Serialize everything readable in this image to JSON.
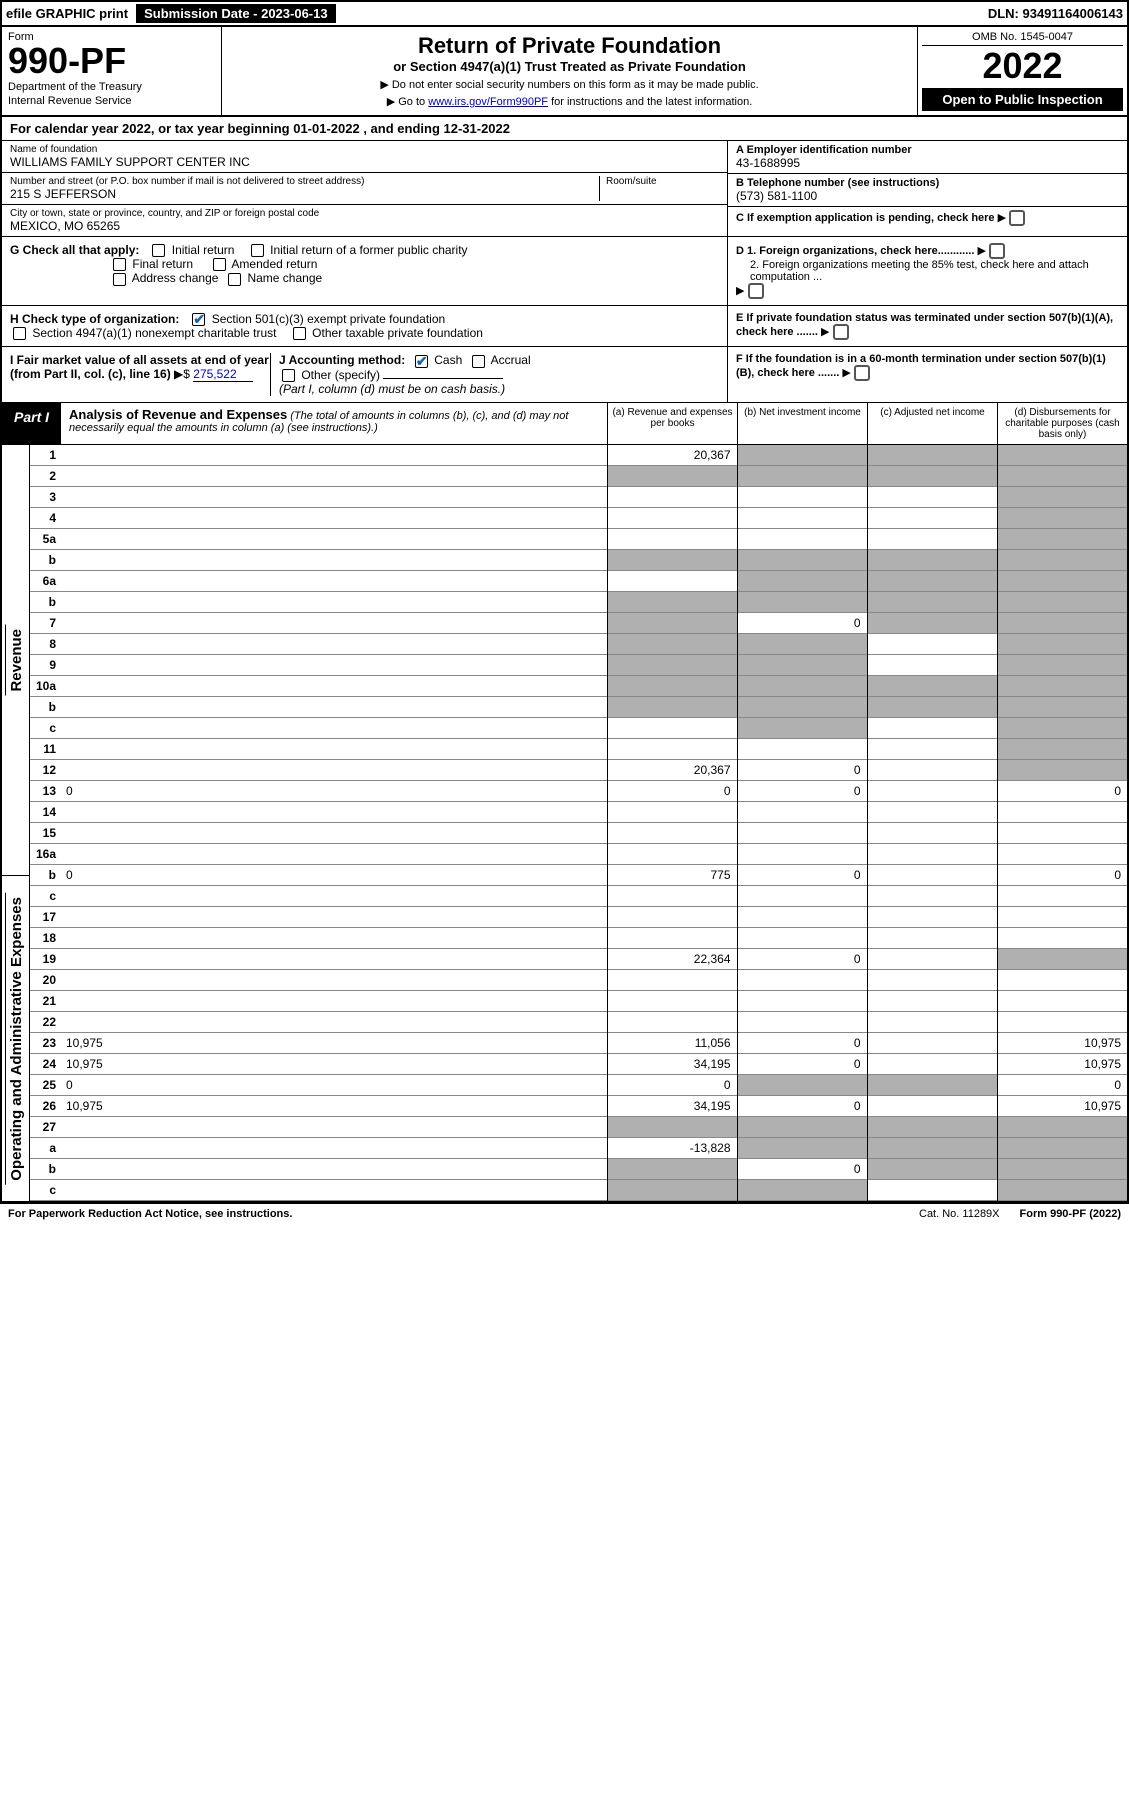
{
  "top": {
    "efile": "efile GRAPHIC print",
    "submission_label": "Submission Date - 2023-06-13",
    "dln": "DLN: 93491164006143"
  },
  "header": {
    "form_label": "Form",
    "form_number": "990-PF",
    "dept1": "Department of the Treasury",
    "dept2": "Internal Revenue Service",
    "title": "Return of Private Foundation",
    "subtitle": "or Section 4947(a)(1) Trust Treated as Private Foundation",
    "note1": "▶ Do not enter social security numbers on this form as it may be made public.",
    "note2_pre": "▶ Go to ",
    "note2_link": "www.irs.gov/Form990PF",
    "note2_post": " for instructions and the latest information.",
    "omb": "OMB No. 1545-0047",
    "year": "2022",
    "open": "Open to Public Inspection"
  },
  "cal_year": "For calendar year 2022, or tax year beginning 01-01-2022             , and ending 12-31-2022",
  "info": {
    "name_label": "Name of foundation",
    "name": "WILLIAMS FAMILY SUPPORT CENTER INC",
    "addr_label": "Number and street (or P.O. box number if mail is not delivered to street address)",
    "addr": "215 S JEFFERSON",
    "room_label": "Room/suite",
    "city_label": "City or town, state or province, country, and ZIP or foreign postal code",
    "city": "MEXICO, MO  65265",
    "a_label": "A Employer identification number",
    "a_val": "43-1688995",
    "b_label": "B Telephone number (see instructions)",
    "b_val": "(573) 581-1100",
    "c_label": "C If exemption application is pending, check here",
    "d1": "D 1. Foreign organizations, check here............",
    "d2": "2. Foreign organizations meeting the 85% test, check here and attach computation ...",
    "e": "E  If private foundation status was terminated under section 507(b)(1)(A), check here .......",
    "f": "F  If the foundation is in a 60-month termination under section 507(b)(1)(B), check here .......",
    "g_label": "G Check all that apply:",
    "g_initial": "Initial return",
    "g_initial_former": "Initial return of a former public charity",
    "g_final": "Final return",
    "g_amended": "Amended return",
    "g_address": "Address change",
    "g_name": "Name change",
    "h_label": "H Check type of organization:",
    "h_501c3": "Section 501(c)(3) exempt private foundation",
    "h_4947": "Section 4947(a)(1) nonexempt charitable trust",
    "h_other": "Other taxable private foundation",
    "i_label": "I Fair market value of all assets at end of year (from Part II, col. (c), line 16)",
    "i_val": "275,522",
    "j_label": "J Accounting method:",
    "j_cash": "Cash",
    "j_accrual": "Accrual",
    "j_other": "Other (specify)",
    "j_note": "(Part I, column (d) must be on cash basis.)"
  },
  "part1": {
    "label": "Part I",
    "title": "Analysis of Revenue and Expenses",
    "note": "(The total of amounts in columns (b), (c), and (d) may not necessarily equal the amounts in column (a) (see instructions).)",
    "cols": {
      "a": "(a)  Revenue and expenses per books",
      "b": "(b)  Net investment income",
      "c": "(c)  Adjusted net income",
      "d": "(d)  Disbursements for charitable purposes (cash basis only)"
    }
  },
  "sides": {
    "revenue": "Revenue",
    "expenses": "Operating and Administrative Expenses"
  },
  "rows": [
    {
      "n": "1",
      "d": "",
      "a": "20,367",
      "b": "",
      "c": "",
      "sb": true,
      "sc": true,
      "sd": true
    },
    {
      "n": "2",
      "d": "",
      "a": "",
      "b": "",
      "c": "",
      "sa": true,
      "sb": true,
      "sc": true,
      "sd": true
    },
    {
      "n": "3",
      "d": "",
      "a": "",
      "b": "",
      "c": "",
      "sd": true
    },
    {
      "n": "4",
      "d": "",
      "a": "",
      "b": "",
      "c": "",
      "sd": true
    },
    {
      "n": "5a",
      "d": "",
      "a": "",
      "b": "",
      "c": "",
      "sd": true
    },
    {
      "n": "b",
      "d": "",
      "a": "",
      "b": "",
      "c": "",
      "sa": true,
      "sb": true,
      "sc": true,
      "sd": true
    },
    {
      "n": "6a",
      "d": "",
      "a": "",
      "b": "",
      "c": "",
      "sb": true,
      "sc": true,
      "sd": true
    },
    {
      "n": "b",
      "d": "",
      "a": "",
      "b": "",
      "c": "",
      "sa": true,
      "sb": true,
      "sc": true,
      "sd": true
    },
    {
      "n": "7",
      "d": "",
      "a": "",
      "b": "0",
      "c": "",
      "sa": true,
      "sc": true,
      "sd": true
    },
    {
      "n": "8",
      "d": "",
      "a": "",
      "b": "",
      "c": "",
      "sa": true,
      "sb": true,
      "sd": true
    },
    {
      "n": "9",
      "d": "",
      "a": "",
      "b": "",
      "c": "",
      "sa": true,
      "sb": true,
      "sd": true
    },
    {
      "n": "10a",
      "d": "",
      "a": "",
      "b": "",
      "c": "",
      "sa": true,
      "sb": true,
      "sc": true,
      "sd": true
    },
    {
      "n": "b",
      "d": "",
      "a": "",
      "b": "",
      "c": "",
      "sa": true,
      "sb": true,
      "sc": true,
      "sd": true
    },
    {
      "n": "c",
      "d": "",
      "a": "",
      "b": "",
      "c": "",
      "sb": true,
      "sd": true
    },
    {
      "n": "11",
      "d": "",
      "a": "",
      "b": "",
      "c": "",
      "sd": true
    },
    {
      "n": "12",
      "d": "",
      "a": "20,367",
      "b": "0",
      "c": "",
      "sd": true
    },
    {
      "n": "13",
      "d": "0",
      "a": "0",
      "b": "0",
      "c": ""
    },
    {
      "n": "14",
      "d": "",
      "a": "",
      "b": "",
      "c": ""
    },
    {
      "n": "15",
      "d": "",
      "a": "",
      "b": "",
      "c": ""
    },
    {
      "n": "16a",
      "d": "",
      "a": "",
      "b": "",
      "c": ""
    },
    {
      "n": "b",
      "d": "0",
      "a": "775",
      "b": "0",
      "c": ""
    },
    {
      "n": "c",
      "d": "",
      "a": "",
      "b": "",
      "c": ""
    },
    {
      "n": "17",
      "d": "",
      "a": "",
      "b": "",
      "c": ""
    },
    {
      "n": "18",
      "d": "",
      "a": "",
      "b": "",
      "c": ""
    },
    {
      "n": "19",
      "d": "",
      "a": "22,364",
      "b": "0",
      "c": "",
      "sd": true
    },
    {
      "n": "20",
      "d": "",
      "a": "",
      "b": "",
      "c": ""
    },
    {
      "n": "21",
      "d": "",
      "a": "",
      "b": "",
      "c": ""
    },
    {
      "n": "22",
      "d": "",
      "a": "",
      "b": "",
      "c": ""
    },
    {
      "n": "23",
      "d": "10,975",
      "a": "11,056",
      "b": "0",
      "c": ""
    },
    {
      "n": "24",
      "d": "10,975",
      "a": "34,195",
      "b": "0",
      "c": ""
    },
    {
      "n": "25",
      "d": "0",
      "a": "0",
      "b": "",
      "c": "",
      "sb": true,
      "sc": true
    },
    {
      "n": "26",
      "d": "10,975",
      "a": "34,195",
      "b": "0",
      "c": ""
    },
    {
      "n": "27",
      "d": "",
      "a": "",
      "b": "",
      "c": "",
      "sa": true,
      "sb": true,
      "sc": true,
      "sd": true
    },
    {
      "n": "a",
      "d": "",
      "a": "-13,828",
      "b": "",
      "c": "",
      "sb": true,
      "sc": true,
      "sd": true
    },
    {
      "n": "b",
      "d": "",
      "a": "",
      "b": "0",
      "c": "",
      "sa": true,
      "sc": true,
      "sd": true
    },
    {
      "n": "c",
      "d": "",
      "a": "",
      "b": "",
      "c": "",
      "sa": true,
      "sb": true,
      "sd": true
    }
  ],
  "footer": {
    "pra": "For Paperwork Reduction Act Notice, see instructions.",
    "cat": "Cat. No. 11289X",
    "form": "Form 990-PF (2022)"
  }
}
